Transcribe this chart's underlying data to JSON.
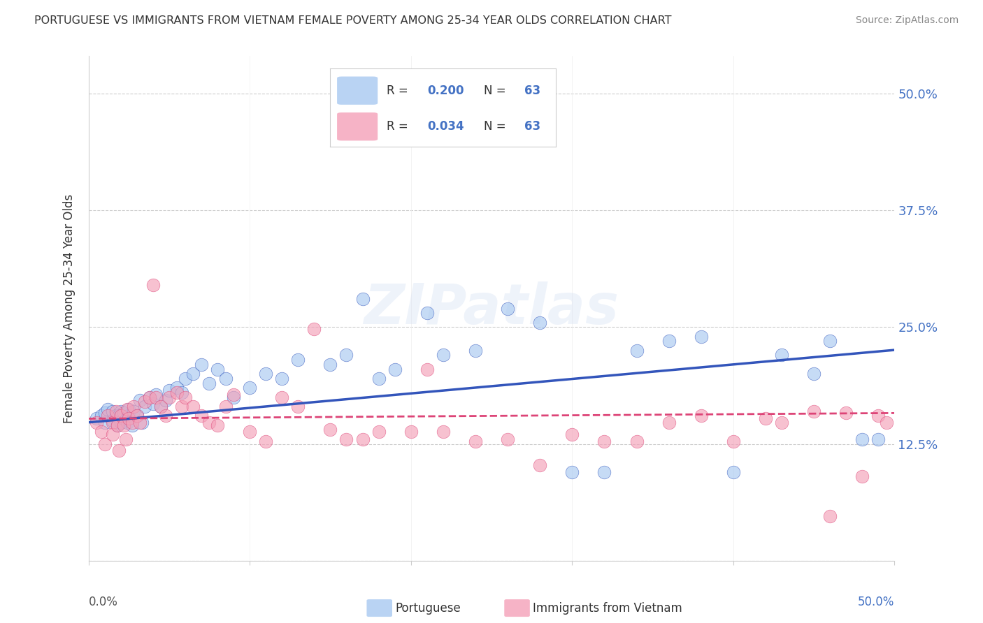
{
  "title": "PORTUGUESE VS IMMIGRANTS FROM VIETNAM FEMALE POVERTY AMONG 25-34 YEAR OLDS CORRELATION CHART",
  "source": "Source: ZipAtlas.com",
  "ylabel": "Female Poverty Among 25-34 Year Olds",
  "yticks": [
    0.0,
    0.125,
    0.25,
    0.375,
    0.5
  ],
  "ytick_labels": [
    "",
    "12.5%",
    "25.0%",
    "37.5%",
    "50.0%"
  ],
  "xlim": [
    0.0,
    0.5
  ],
  "ylim": [
    0.0,
    0.54
  ],
  "r_portuguese": 0.2,
  "r_vietnam": 0.034,
  "n_portuguese": 63,
  "n_vietnam": 63,
  "color_portuguese": "#a8c8f0",
  "color_vietnam": "#f4a0b8",
  "color_portuguese_line": "#3355bb",
  "color_vietnam_line": "#dd4477",
  "watermark": "ZIPatlas",
  "legend_entries": [
    "Portuguese",
    "Immigrants from Vietnam"
  ],
  "portuguese_x": [
    0.005,
    0.008,
    0.01,
    0.01,
    0.012,
    0.015,
    0.015,
    0.017,
    0.018,
    0.019,
    0.02,
    0.02,
    0.022,
    0.022,
    0.024,
    0.025,
    0.025,
    0.027,
    0.028,
    0.03,
    0.032,
    0.033,
    0.035,
    0.038,
    0.04,
    0.042,
    0.045,
    0.048,
    0.05,
    0.055,
    0.058,
    0.06,
    0.065,
    0.07,
    0.075,
    0.08,
    0.085,
    0.09,
    0.1,
    0.11,
    0.12,
    0.13,
    0.15,
    0.16,
    0.17,
    0.18,
    0.19,
    0.21,
    0.22,
    0.24,
    0.26,
    0.28,
    0.3,
    0.32,
    0.34,
    0.36,
    0.38,
    0.4,
    0.43,
    0.45,
    0.46,
    0.48,
    0.49
  ],
  "portuguese_y": [
    0.152,
    0.155,
    0.148,
    0.158,
    0.162,
    0.15,
    0.16,
    0.155,
    0.145,
    0.155,
    0.148,
    0.16,
    0.152,
    0.158,
    0.148,
    0.155,
    0.162,
    0.145,
    0.16,
    0.155,
    0.172,
    0.148,
    0.165,
    0.175,
    0.168,
    0.178,
    0.165,
    0.172,
    0.182,
    0.185,
    0.18,
    0.195,
    0.2,
    0.21,
    0.19,
    0.205,
    0.195,
    0.175,
    0.185,
    0.2,
    0.195,
    0.215,
    0.21,
    0.22,
    0.28,
    0.195,
    0.205,
    0.265,
    0.22,
    0.225,
    0.27,
    0.255,
    0.095,
    0.095,
    0.225,
    0.235,
    0.24,
    0.095,
    0.22,
    0.2,
    0.235,
    0.13,
    0.13
  ],
  "vietnam_x": [
    0.005,
    0.008,
    0.01,
    0.012,
    0.015,
    0.015,
    0.017,
    0.018,
    0.019,
    0.02,
    0.022,
    0.023,
    0.024,
    0.025,
    0.027,
    0.028,
    0.03,
    0.032,
    0.035,
    0.038,
    0.04,
    0.042,
    0.045,
    0.048,
    0.05,
    0.055,
    0.058,
    0.06,
    0.065,
    0.07,
    0.075,
    0.08,
    0.085,
    0.09,
    0.1,
    0.11,
    0.12,
    0.13,
    0.14,
    0.15,
    0.16,
    0.17,
    0.18,
    0.2,
    0.21,
    0.22,
    0.24,
    0.26,
    0.28,
    0.3,
    0.32,
    0.34,
    0.36,
    0.38,
    0.4,
    0.42,
    0.43,
    0.45,
    0.46,
    0.47,
    0.48,
    0.49,
    0.495
  ],
  "vietnam_y": [
    0.148,
    0.138,
    0.125,
    0.155,
    0.148,
    0.135,
    0.16,
    0.145,
    0.118,
    0.155,
    0.145,
    0.13,
    0.162,
    0.152,
    0.148,
    0.165,
    0.155,
    0.148,
    0.17,
    0.175,
    0.295,
    0.175,
    0.165,
    0.155,
    0.175,
    0.18,
    0.165,
    0.175,
    0.165,
    0.155,
    0.148,
    0.145,
    0.165,
    0.178,
    0.138,
    0.128,
    0.175,
    0.165,
    0.248,
    0.14,
    0.13,
    0.13,
    0.138,
    0.138,
    0.205,
    0.138,
    0.128,
    0.13,
    0.102,
    0.135,
    0.128,
    0.128,
    0.148,
    0.155,
    0.128,
    0.152,
    0.148,
    0.16,
    0.048,
    0.158,
    0.09,
    0.155,
    0.148
  ],
  "background_color": "#ffffff",
  "grid_color": "#cccccc",
  "line_intercept_portuguese": 0.148,
  "line_slope_portuguese": 0.155,
  "line_intercept_vietnam": 0.152,
  "line_slope_vietnam": 0.012
}
